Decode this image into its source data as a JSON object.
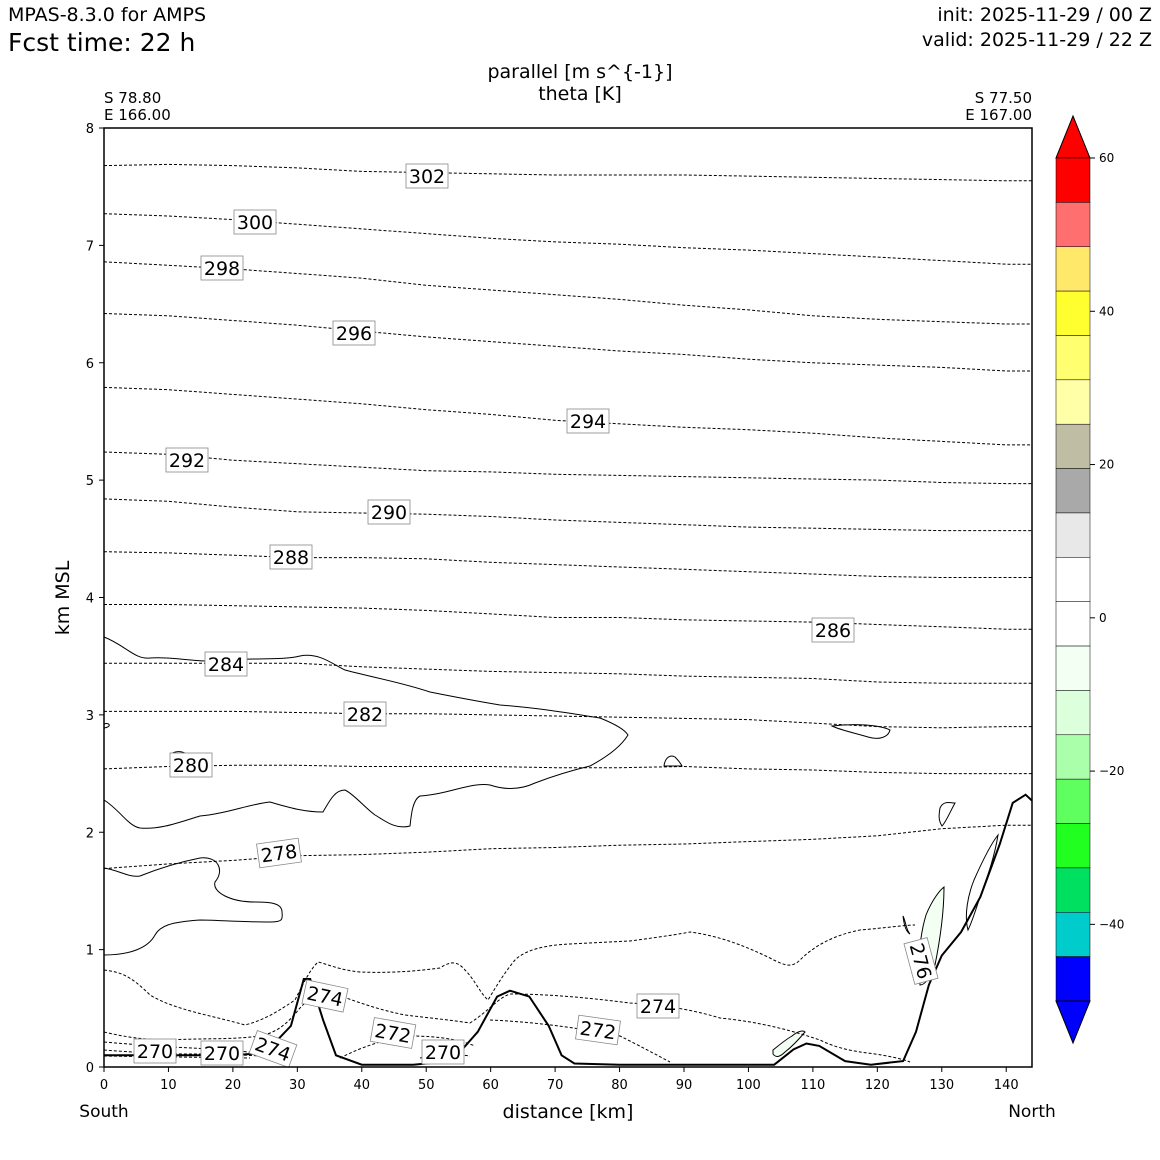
{
  "header": {
    "model": "MPAS-8.3.0 for AMPS",
    "fcst_time": "Fcst time:   22 h",
    "init": "init: 2025-11-29 / 00 Z",
    "valid": "valid: 2025-11-29 / 22 Z"
  },
  "chart_data": {
    "type": "cross-section",
    "title_line1": "parallel [m s^{-1}]",
    "title_line2": "theta [K]",
    "xlabel": "distance [km]",
    "ylabel": "km MSL",
    "xlim": [
      0,
      144
    ],
    "ylim": [
      0,
      8
    ],
    "xticks": [
      "0",
      "10",
      "20",
      "30",
      "40",
      "50",
      "60",
      "70",
      "80",
      "90",
      "100",
      "110",
      "120",
      "130",
      "140"
    ],
    "yticks": [
      "0",
      "1",
      "2",
      "3",
      "4",
      "5",
      "6",
      "7",
      "8"
    ],
    "endpoints": {
      "left": {
        "lat": "S 78.80",
        "lon": "E 166.00",
        "dir": "South"
      },
      "right": {
        "lat": "S 77.50",
        "lon": "E 167.00",
        "dir": "North"
      }
    },
    "colorbar": {
      "ticks": [
        "60",
        "40",
        "20",
        "0",
        "−20",
        "−40"
      ],
      "colors": [
        "#ff0000",
        "#ff6f6f",
        "#ffe86a",
        "#ffff30",
        "#ffff70",
        "#ffffa8",
        "#c0bda5",
        "#a9a9a9",
        "#e8e8e8",
        "#ffffff",
        "#ffffff",
        "#f2fff2",
        "#dcffdc",
        "#aaffaa",
        "#60ff60",
        "#20ff20",
        "#00e060",
        "#00cccc",
        "#0000ff"
      ],
      "extend_max_color": "#ff0000",
      "extend_min_color": "#0000ff"
    },
    "theta_isentropes": [
      {
        "theta": 302,
        "label": "302",
        "km": [
          7.68,
          7.69,
          7.68,
          7.66,
          7.63,
          7.62,
          7.61,
          7.6,
          7.6,
          7.6,
          7.59,
          7.58,
          7.57,
          7.56,
          7.55
        ],
        "label_x": 50
      },
      {
        "theta": 300,
        "label": "300",
        "km": [
          7.27,
          7.25,
          7.22,
          7.18,
          7.14,
          7.1,
          7.06,
          7.03,
          7.01,
          6.98,
          6.96,
          6.93,
          6.9,
          6.87,
          6.84
        ],
        "label_x": 24
      },
      {
        "theta": 298,
        "label": "298",
        "km": [
          6.86,
          6.83,
          6.8,
          6.76,
          6.72,
          6.66,
          6.62,
          6.58,
          6.54,
          6.49,
          6.45,
          6.4,
          6.37,
          6.35,
          6.33
        ],
        "label_x": 18
      },
      {
        "theta": 296,
        "label": "296",
        "km": [
          6.42,
          6.4,
          6.36,
          6.32,
          6.27,
          6.22,
          6.18,
          6.14,
          6.1,
          6.07,
          6.03,
          6.0,
          5.98,
          5.96,
          5.93
        ],
        "label_x": 39
      },
      {
        "theta": 294,
        "label": "294",
        "km": [
          5.79,
          5.77,
          5.73,
          5.69,
          5.65,
          5.6,
          5.56,
          5.51,
          5.48,
          5.45,
          5.43,
          5.4,
          5.36,
          5.33,
          5.3
        ],
        "label_x": 75
      },
      {
        "theta": 292,
        "label": "292",
        "km": [
          5.24,
          5.22,
          5.17,
          5.14,
          5.11,
          5.08,
          5.07,
          5.05,
          5.04,
          5.03,
          5.02,
          5.01,
          5.0,
          4.98,
          4.97
        ],
        "label_x": 13
      },
      {
        "theta": 290,
        "label": "290",
        "km": [
          4.84,
          4.82,
          4.77,
          4.73,
          4.72,
          4.71,
          4.69,
          4.66,
          4.64,
          4.62,
          4.6,
          4.59,
          4.58,
          4.57,
          4.57
        ],
        "label_x": 44
      },
      {
        "theta": 288,
        "label": "288",
        "km": [
          4.39,
          4.38,
          4.36,
          4.34,
          4.34,
          4.33,
          4.3,
          4.28,
          4.26,
          4.24,
          4.22,
          4.2,
          4.18,
          4.17,
          4.17
        ],
        "label_x": 29
      },
      {
        "theta": 286,
        "label": "286",
        "km": [
          3.94,
          3.94,
          3.93,
          3.92,
          3.91,
          3.89,
          3.86,
          3.83,
          3.83,
          3.81,
          3.8,
          3.79,
          3.77,
          3.75,
          3.73
        ],
        "label_x": 112
      },
      {
        "theta": 284,
        "label": "284",
        "km": [
          3.44,
          3.44,
          3.44,
          3.44,
          3.41,
          3.39,
          3.37,
          3.36,
          3.35,
          3.33,
          3.32,
          3.31,
          3.28,
          3.27,
          3.27
        ],
        "label_x": 19
      },
      {
        "theta": 282,
        "label": "282",
        "km": [
          3.03,
          3.03,
          3.03,
          3.02,
          3.01,
          3.01,
          3.0,
          2.99,
          2.98,
          2.97,
          2.96,
          2.93,
          2.9,
          2.89,
          2.9
        ],
        "label_x": 40
      },
      {
        "theta": 280,
        "label": "280",
        "km": [
          2.54,
          2.56,
          2.57,
          2.57,
          2.56,
          2.56,
          2.56,
          2.55,
          2.55,
          2.56,
          2.54,
          2.53,
          2.51,
          2.5,
          2.5
        ],
        "label_x": 13
      },
      {
        "theta": 278,
        "label": "278",
        "km": [
          1.69,
          1.73,
          1.76,
          1.8,
          1.81,
          1.83,
          1.86,
          1.87,
          1.89,
          1.9,
          1.92,
          1.94,
          1.97,
          2.03,
          2.06
        ],
        "label_x": 27
      },
      {
        "theta": 276,
        "label": "276",
        "label_x": 127
      },
      {
        "theta": 274,
        "label": "274",
        "label_x": 86
      },
      {
        "theta": 272,
        "label": "272",
        "label_x": 45
      },
      {
        "theta": 270,
        "label": "270",
        "label_x": 8
      }
    ],
    "terrain_km": [
      [
        0,
        0.1
      ],
      [
        10,
        0.1
      ],
      [
        20,
        0.1
      ],
      [
        25,
        0.12
      ],
      [
        29,
        0.35
      ],
      [
        31,
        0.75
      ],
      [
        32,
        0.75
      ],
      [
        34,
        0.4
      ],
      [
        36,
        0.1
      ],
      [
        40,
        0.02
      ],
      [
        48,
        0.02
      ],
      [
        54,
        0.05
      ],
      [
        58,
        0.3
      ],
      [
        61,
        0.6
      ],
      [
        63,
        0.65
      ],
      [
        66,
        0.6
      ],
      [
        69,
        0.35
      ],
      [
        71,
        0.1
      ],
      [
        73,
        0.03
      ],
      [
        80,
        0.02
      ],
      [
        90,
        0.02
      ],
      [
        104,
        0.02
      ],
      [
        107,
        0.15
      ],
      [
        109,
        0.2
      ],
      [
        111,
        0.18
      ],
      [
        115,
        0.05
      ],
      [
        119,
        0.02
      ],
      [
        124,
        0.05
      ],
      [
        126,
        0.3
      ],
      [
        128,
        0.7
      ],
      [
        130,
        0.95
      ],
      [
        133,
        1.15
      ],
      [
        136,
        1.45
      ],
      [
        139,
        1.9
      ],
      [
        141,
        2.25
      ],
      [
        143,
        2.32
      ],
      [
        144,
        2.27
      ]
    ]
  }
}
